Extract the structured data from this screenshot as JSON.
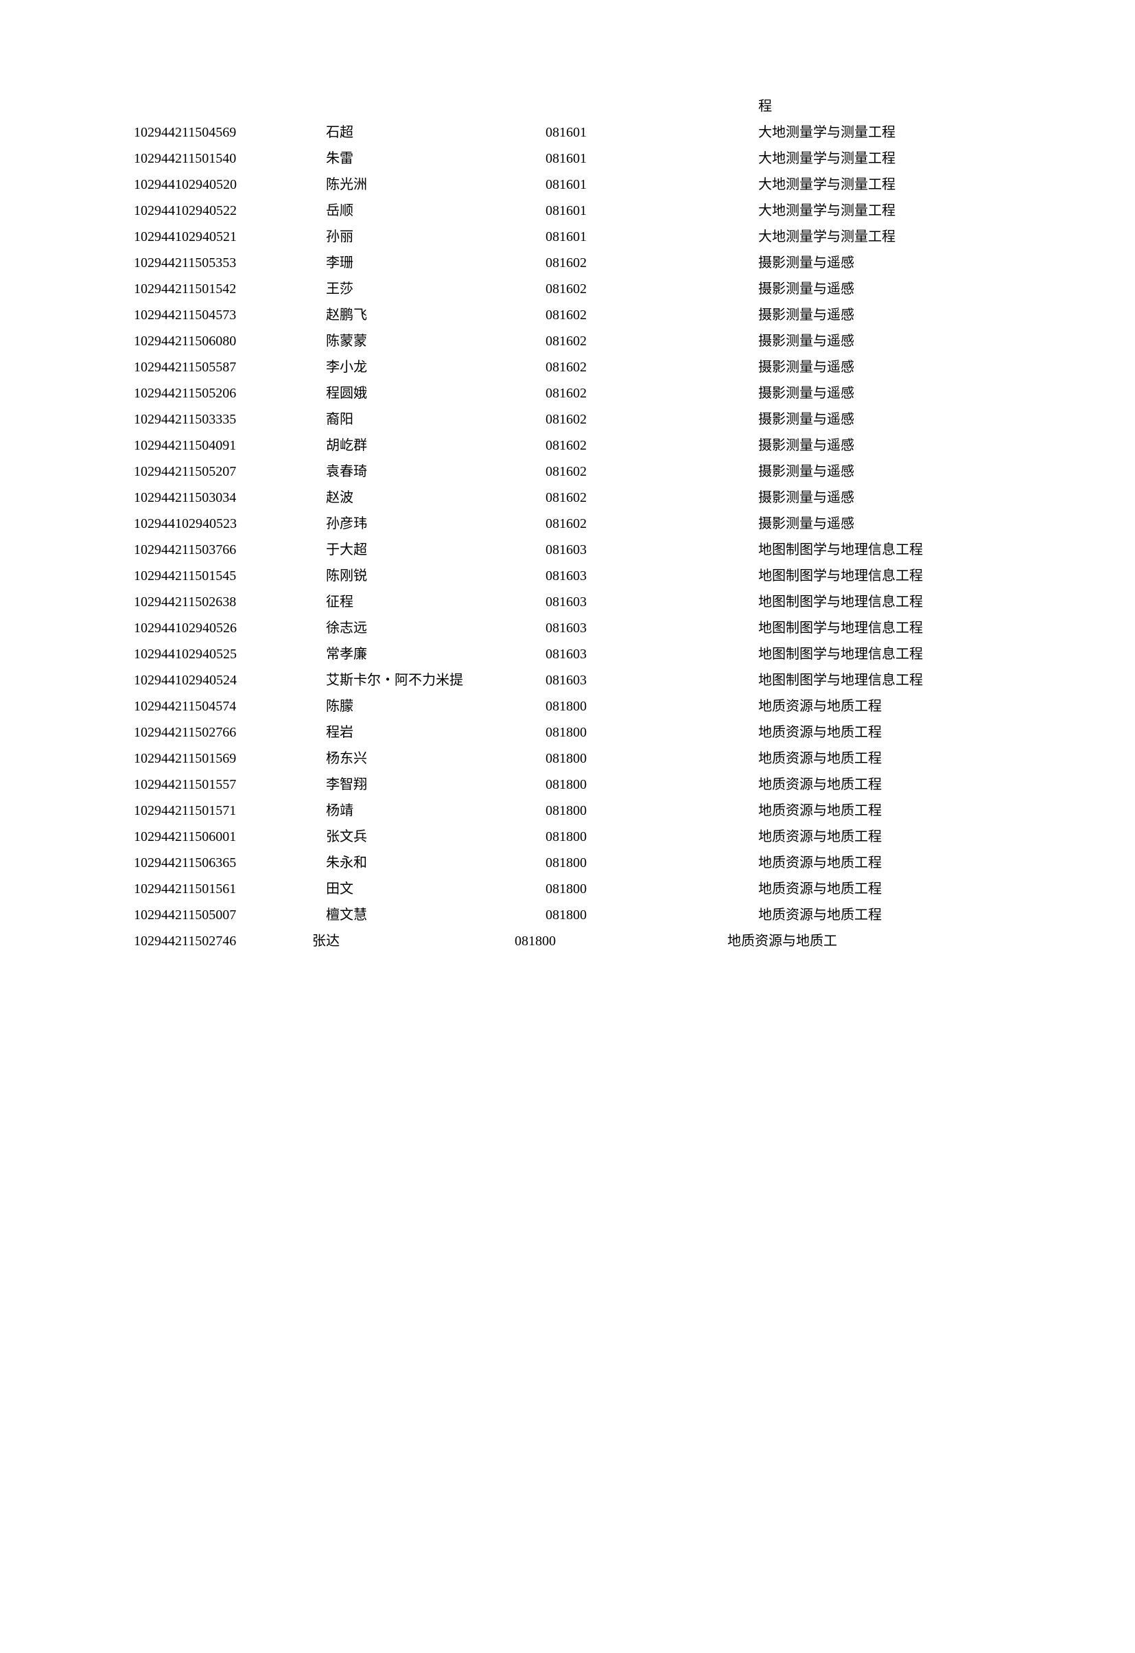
{
  "orphan_top": "程",
  "rows": [
    {
      "id": "102944211504569",
      "name": "石超",
      "code": "081601",
      "major": "大地测量学与测量工程"
    },
    {
      "id": "102944211501540",
      "name": "朱雷",
      "code": "081601",
      "major": "大地测量学与测量工程"
    },
    {
      "id": "102944102940520",
      "name": "陈光洲",
      "code": "081601",
      "major": "大地测量学与测量工程"
    },
    {
      "id": "102944102940522",
      "name": "岳顺",
      "code": "081601",
      "major": "大地测量学与测量工程"
    },
    {
      "id": "102944102940521",
      "name": "孙丽",
      "code": "081601",
      "major": "大地测量学与测量工程"
    },
    {
      "id": "102944211505353",
      "name": "李珊",
      "code": "081602",
      "major": "摄影测量与遥感"
    },
    {
      "id": "102944211501542",
      "name": "王莎",
      "code": "081602",
      "major": "摄影测量与遥感"
    },
    {
      "id": "102944211504573",
      "name": "赵鹏飞",
      "code": "081602",
      "major": "摄影测量与遥感"
    },
    {
      "id": "102944211506080",
      "name": "陈蒙蒙",
      "code": "081602",
      "major": "摄影测量与遥感"
    },
    {
      "id": "102944211505587",
      "name": "李小龙",
      "code": "081602",
      "major": "摄影测量与遥感"
    },
    {
      "id": "102944211505206",
      "name": "程圆娥",
      "code": "081602",
      "major": "摄影测量与遥感"
    },
    {
      "id": "102944211503335",
      "name": "裔阳",
      "code": "081602",
      "major": "摄影测量与遥感"
    },
    {
      "id": "102944211504091",
      "name": "胡屹群",
      "code": "081602",
      "major": "摄影测量与遥感"
    },
    {
      "id": "102944211505207",
      "name": "袁春琦",
      "code": "081602",
      "major": "摄影测量与遥感"
    },
    {
      "id": "102944211503034",
      "name": "赵波",
      "code": "081602",
      "major": "摄影测量与遥感"
    },
    {
      "id": "102944102940523",
      "name": "孙彦玮",
      "code": "081602",
      "major": "摄影测量与遥感"
    },
    {
      "id": "102944211503766",
      "name": "于大超",
      "code": "081603",
      "major": "地图制图学与地理信息工程"
    },
    {
      "id": "102944211501545",
      "name": "陈刚锐",
      "code": "081603",
      "major": "地图制图学与地理信息工程"
    },
    {
      "id": "102944211502638",
      "name": "征程",
      "code": "081603",
      "major": "地图制图学与地理信息工程"
    },
    {
      "id": "102944102940526",
      "name": "徐志远",
      "code": "081603",
      "major": "地图制图学与地理信息工程"
    },
    {
      "id": "102944102940525",
      "name": "常孝廉",
      "code": "081603",
      "major": "地图制图学与地理信息工程"
    },
    {
      "id": "102944102940524",
      "name": "艾斯卡尔・阿不力米提",
      "code": "081603",
      "major": "地图制图学与地理信息工程"
    },
    {
      "id": "102944211504574",
      "name": "陈朦",
      "code": "081800",
      "major": "地质资源与地质工程"
    },
    {
      "id": "102944211502766",
      "name": "程岩",
      "code": "081800",
      "major": "地质资源与地质工程"
    },
    {
      "id": "102944211501569",
      "name": "杨东兴",
      "code": "081800",
      "major": "地质资源与地质工程"
    },
    {
      "id": "102944211501557",
      "name": "李智翔",
      "code": "081800",
      "major": "地质资源与地质工程"
    },
    {
      "id": "102944211501571",
      "name": "杨靖",
      "code": "081800",
      "major": "地质资源与地质工程"
    },
    {
      "id": "102944211506001",
      "name": "张文兵",
      "code": "081800",
      "major": "地质资源与地质工程"
    },
    {
      "id": "102944211506365",
      "name": "朱永和",
      "code": "081800",
      "major": "地质资源与地质工程"
    },
    {
      "id": "102944211501561",
      "name": "田文",
      "code": "081800",
      "major": "地质资源与地质工程"
    },
    {
      "id": "102944211505007",
      "name": "檀文慧",
      "code": "081800",
      "major": "地质资源与地质工程"
    },
    {
      "id": "102944211502746",
      "name": "张达",
      "code": "081800",
      "major": "地质资源与地质工",
      "lastRow": true
    }
  ]
}
